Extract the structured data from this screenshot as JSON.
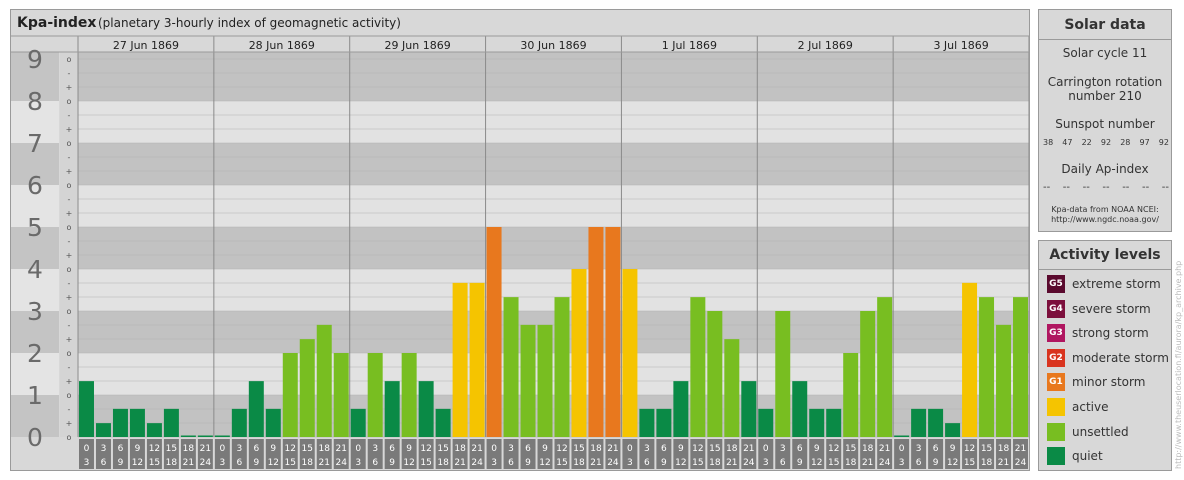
{
  "header": {
    "title": "Kpa-index",
    "subtitle": "(planetary 3-hourly index of geomagnetic activity)"
  },
  "chart_data": {
    "type": "bar",
    "days": [
      "27 Jun 1869",
      "28 Jun 1869",
      "29 Jun 1869",
      "30 Jun 1869",
      "1 Jul 1869",
      "2 Jul 1869",
      "3 Jul 1869"
    ],
    "interval_labels": [
      [
        "0",
        "3"
      ],
      [
        "3",
        "6"
      ],
      [
        "6",
        "9"
      ],
      [
        "9",
        "12"
      ],
      [
        "12",
        "15"
      ],
      [
        "15",
        "18"
      ],
      [
        "18",
        "21"
      ],
      [
        "21",
        "24"
      ]
    ],
    "y_major_labels": [
      "0",
      "1",
      "2",
      "3",
      "4",
      "5",
      "6",
      "7",
      "8",
      "9"
    ],
    "y_minor_labels": [
      "o",
      "+",
      "-",
      "o",
      "+",
      "-",
      "o",
      "+",
      "-",
      "o",
      "+",
      "-",
      "o",
      "+",
      "-",
      "o",
      "+",
      "-",
      "o",
      "+",
      "-",
      "o",
      "+",
      "-",
      "o",
      "+",
      "-",
      "o"
    ],
    "ylim": [
      0,
      9
    ],
    "values": [
      1.33,
      0.33,
      0.67,
      0.67,
      0.33,
      0.67,
      0,
      0,
      0,
      0.67,
      1.33,
      0.67,
      2,
      2.33,
      2.67,
      2,
      0.67,
      2,
      1.33,
      2,
      1.33,
      0.67,
      3.67,
      3.67,
      5,
      3.33,
      2.67,
      2.67,
      3.33,
      4,
      5,
      5,
      4,
      0.67,
      0.67,
      1.33,
      3.33,
      3,
      2.33,
      1.33,
      0.67,
      3,
      1.33,
      0.67,
      0.67,
      2,
      3,
      3.33,
      0,
      0.67,
      0.67,
      0.33,
      3.67,
      3.33,
      2.67,
      3.33
    ],
    "levels": [
      "quiet",
      "quiet",
      "quiet",
      "quiet",
      "quiet",
      "quiet",
      "quiet",
      "quiet",
      "quiet",
      "quiet",
      "quiet",
      "quiet",
      "unsettled",
      "unsettled",
      "unsettled",
      "unsettled",
      "quiet",
      "unsettled",
      "quiet",
      "unsettled",
      "quiet",
      "quiet",
      "active",
      "active",
      "minor",
      "unsettled",
      "unsettled",
      "unsettled",
      "unsettled",
      "active",
      "minor",
      "minor",
      "active",
      "quiet",
      "quiet",
      "quiet",
      "unsettled",
      "unsettled",
      "unsettled",
      "quiet",
      "quiet",
      "unsettled",
      "quiet",
      "quiet",
      "quiet",
      "unsettled",
      "unsettled",
      "unsettled",
      "quiet",
      "quiet",
      "quiet",
      "quiet",
      "active",
      "unsettled",
      "unsettled",
      "unsettled"
    ],
    "colors": {
      "quiet": "#0a8a46",
      "unsettled": "#78be21",
      "active": "#f5c400",
      "minor": "#e8781e"
    }
  },
  "solar": {
    "title": "Solar data",
    "cycle": "Solar cycle 11",
    "carrington_line1": "Carrington rotation",
    "carrington_line2": "number 210",
    "sunspot_title": "Sunspot number",
    "sunspot_values": [
      "38",
      "47",
      "22",
      "92",
      "28",
      "97",
      "92"
    ],
    "ap_title": "Daily Ap-index",
    "ap_values": [
      "--",
      "--",
      "--",
      "--",
      "--",
      "--",
      "--"
    ],
    "source_line1": "Kpa-data from NOAA NCEI:",
    "source_line2": "http://www.ngdc.noaa.gov/"
  },
  "activity": {
    "title": "Activity levels",
    "items": [
      {
        "badge": "G5",
        "label": "extreme storm",
        "color": "#5a0a2e"
      },
      {
        "badge": "G4",
        "label": "severe storm",
        "color": "#7c0f3c"
      },
      {
        "badge": "G3",
        "label": "strong storm",
        "color": "#b01660"
      },
      {
        "badge": "G2",
        "label": "moderate storm",
        "color": "#d9341f"
      },
      {
        "badge": "G1",
        "label": "minor storm",
        "color": "#e8781e"
      },
      {
        "badge": "",
        "label": "active",
        "color": "#f5c400"
      },
      {
        "badge": "",
        "label": "unsettled",
        "color": "#78be21"
      },
      {
        "badge": "",
        "label": "quiet",
        "color": "#0a8a46"
      }
    ]
  },
  "watermark": "http://www.theuserlocation.fi/aurora/kp_archive.php"
}
